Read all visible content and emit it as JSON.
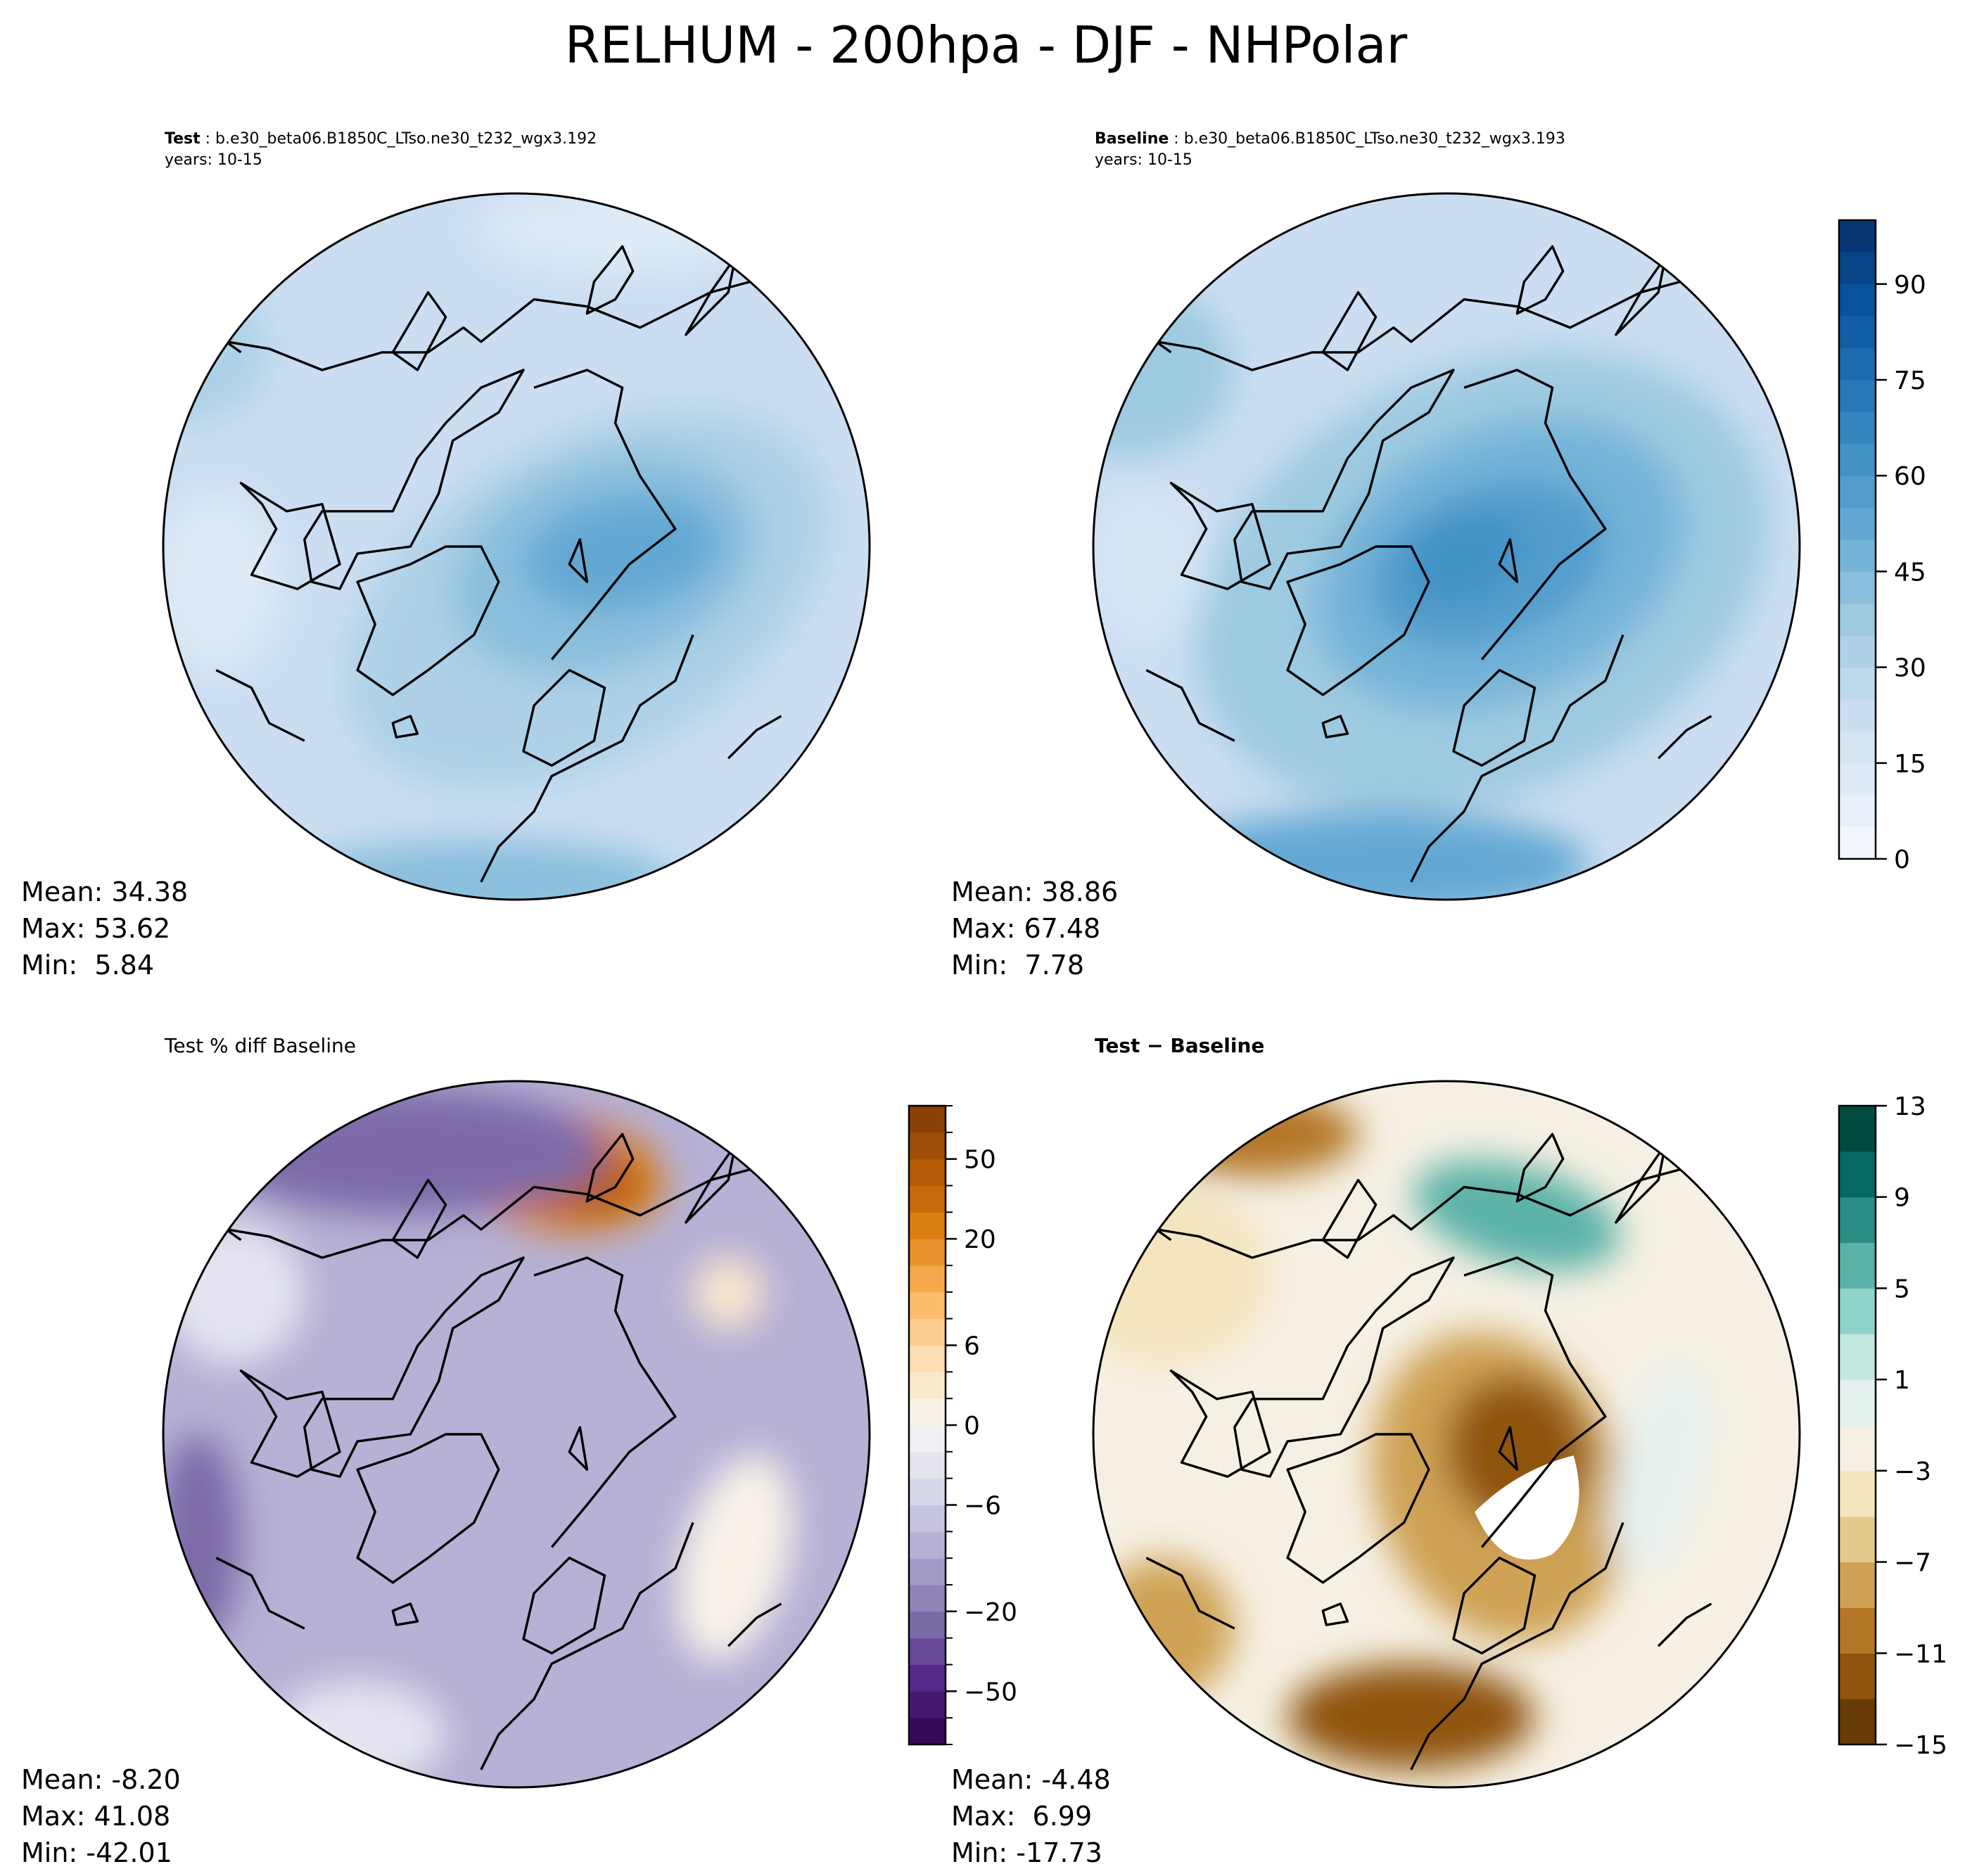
{
  "figure_title": "RELHUM - 200hpa - DJF - NHPolar",
  "chart_data": [
    {
      "id": "test",
      "type": "heatmap",
      "projection": "north-polar-stereographic",
      "title_bold": "Test",
      "title_rest": " : b.e30_beta06.B1850C_LTso.ne30_t232_wgx3.192",
      "subtitle": "years: 10-15",
      "stats": {
        "mean": "Mean: 34.38",
        "max": "Max: 53.62",
        "min": "Min:  5.84"
      },
      "colormap": "blues",
      "field": {
        "background": 22,
        "blobs": [
          {
            "dx": 0.2,
            "dy": 0.15,
            "rx": 0.75,
            "ry": 0.45,
            "rot": -30,
            "v": 34
          },
          {
            "dx": 0.25,
            "dy": 0.05,
            "rx": 0.45,
            "ry": 0.3,
            "rot": -20,
            "v": 42
          },
          {
            "dx": 0.3,
            "dy": 0.02,
            "rx": 0.28,
            "ry": 0.16,
            "rot": -10,
            "v": 50
          },
          {
            "dx": -0.1,
            "dy": 0.95,
            "rx": 0.55,
            "ry": 0.12,
            "rot": 0,
            "v": 42
          },
          {
            "dx": -0.95,
            "dy": -0.55,
            "rx": 0.25,
            "ry": 0.2,
            "rot": 0,
            "v": 32
          },
          {
            "dx": -0.85,
            "dy": 0.1,
            "rx": 0.18,
            "ry": 0.25,
            "rot": 0,
            "v": 10
          },
          {
            "dx": 0.3,
            "dy": -0.9,
            "rx": 0.4,
            "ry": 0.12,
            "rot": 0,
            "v": 12
          }
        ]
      }
    },
    {
      "id": "baseline",
      "type": "heatmap",
      "projection": "north-polar-stereographic",
      "title_bold": "Baseline",
      "title_rest": " : b.e30_beta06.B1850C_LTso.ne30_t232_wgx3.193",
      "subtitle": "years: 10-15",
      "stats": {
        "mean": "Mean: 38.86",
        "max": "Max: 67.48",
        "min": "Min:  7.78"
      },
      "colormap": "blues",
      "field": {
        "background": 24,
        "blobs": [
          {
            "dx": 0.1,
            "dy": 0.1,
            "rx": 0.85,
            "ry": 0.6,
            "rot": -25,
            "v": 38
          },
          {
            "dx": 0.15,
            "dy": 0.05,
            "rx": 0.55,
            "ry": 0.38,
            "rot": -25,
            "v": 48
          },
          {
            "dx": 0.12,
            "dy": 0.05,
            "rx": 0.35,
            "ry": 0.22,
            "rot": -20,
            "v": 58
          },
          {
            "dx": 0.05,
            "dy": 0.03,
            "rx": 0.18,
            "ry": 0.12,
            "rot": -20,
            "v": 64
          },
          {
            "dx": -0.2,
            "dy": 0.9,
            "rx": 0.6,
            "ry": 0.15,
            "rot": 0,
            "v": 50
          },
          {
            "dx": -0.9,
            "dy": -0.5,
            "rx": 0.3,
            "ry": 0.25,
            "rot": 0,
            "v": 35
          },
          {
            "dx": -0.85,
            "dy": 0.05,
            "rx": 0.18,
            "ry": 0.22,
            "rot": 0,
            "v": 15
          }
        ]
      },
      "colorbar": {
        "ticks": [
          "0",
          "15",
          "30",
          "45",
          "60",
          "75",
          "90"
        ],
        "tick_values": [
          0,
          15,
          30,
          45,
          60,
          75,
          90
        ],
        "range": [
          0,
          100
        ],
        "levels": 20
      }
    },
    {
      "id": "pct-diff",
      "type": "heatmap",
      "projection": "north-polar-stereographic",
      "title_plain": "Test % diff Baseline",
      "stats": {
        "mean": "Mean: -8.20",
        "max": "Max: 41.08",
        "min": "Min: -42.01"
      },
      "colormap": "puor",
      "field": {
        "background": -10,
        "blobs": [
          {
            "dx": 0.1,
            "dy": -0.75,
            "rx": 0.32,
            "ry": 0.17,
            "rot": 10,
            "v": 24
          },
          {
            "dx": 0.15,
            "dy": -0.73,
            "rx": 0.2,
            "ry": 0.1,
            "rot": 10,
            "v": 40
          },
          {
            "dx": -0.3,
            "dy": -0.8,
            "rx": 0.55,
            "ry": 0.18,
            "rot": 0,
            "v": -30
          },
          {
            "dx": -0.9,
            "dy": 0.3,
            "rx": 0.12,
            "ry": 0.3,
            "rot": 0,
            "v": -30
          },
          {
            "dx": 0.62,
            "dy": 0.35,
            "rx": 0.15,
            "ry": 0.3,
            "rot": 15,
            "v": 1
          },
          {
            "dx": 0.6,
            "dy": -0.4,
            "rx": 0.1,
            "ry": 0.1,
            "rot": 0,
            "v": 3
          },
          {
            "dx": -0.8,
            "dy": -0.4,
            "rx": 0.2,
            "ry": 0.2,
            "rot": 0,
            "v": -4
          },
          {
            "dx": -0.45,
            "dy": 0.85,
            "rx": 0.25,
            "ry": 0.15,
            "rot": 0,
            "v": -4
          }
        ]
      },
      "colorbar": {
        "ticks": [
          "50",
          "20",
          "6",
          "0",
          "−6",
          "−20",
          "−50"
        ],
        "tick_values": [
          50,
          20,
          6,
          0,
          -6,
          -20,
          -50
        ],
        "levels": [
          "-70",
          "-60",
          "-50",
          "-40",
          "-30",
          "-20",
          "-15",
          "-10",
          "-8",
          "-6",
          "-4",
          "-2",
          "0",
          "2",
          "4",
          "6",
          "8",
          "10",
          "15",
          "20",
          "30",
          "40",
          "50",
          "60",
          "70"
        ]
      }
    },
    {
      "id": "abs-diff",
      "type": "heatmap",
      "projection": "north-polar-stereographic",
      "title_bold": "Test − Baseline",
      "stats": {
        "mean": "Mean: -4.48",
        "max": "Max:  6.99",
        "min": "Min: -17.73"
      },
      "colormap": "brbg",
      "field": {
        "background": -2,
        "blobs": [
          {
            "dx": 0.15,
            "dy": 0.15,
            "rx": 0.35,
            "ry": 0.45,
            "rot": -20,
            "v": -9
          },
          {
            "dx": 0.2,
            "dy": 0.05,
            "rx": 0.2,
            "ry": 0.22,
            "rot": -20,
            "v": -13
          },
          {
            "dx": 0.2,
            "dy": -0.62,
            "rx": 0.3,
            "ry": 0.14,
            "rot": 15,
            "v": 5
          },
          {
            "dx": -0.1,
            "dy": 0.8,
            "rx": 0.35,
            "ry": 0.15,
            "rot": 0,
            "v": -12
          },
          {
            "dx": -0.8,
            "dy": -0.45,
            "rx": 0.3,
            "ry": 0.25,
            "rot": 0,
            "v": -5
          },
          {
            "dx": -0.55,
            "dy": -0.85,
            "rx": 0.3,
            "ry": 0.12,
            "rot": 0,
            "v": -10
          },
          {
            "dx": 0.6,
            "dy": 0.1,
            "rx": 0.12,
            "ry": 0.3,
            "rot": 15,
            "v": 0
          },
          {
            "dx": -0.8,
            "dy": 0.55,
            "rx": 0.2,
            "ry": 0.2,
            "rot": 0,
            "v": -8
          }
        ]
      },
      "colorbar": {
        "ticks": [
          "13",
          "9",
          "5",
          "1",
          "−3",
          "−7",
          "−11",
          "−15"
        ],
        "tick_values": [
          13,
          9,
          5,
          1,
          -3,
          -7,
          -11,
          -15
        ],
        "range": [
          -15,
          13
        ],
        "levels": 14
      }
    }
  ]
}
